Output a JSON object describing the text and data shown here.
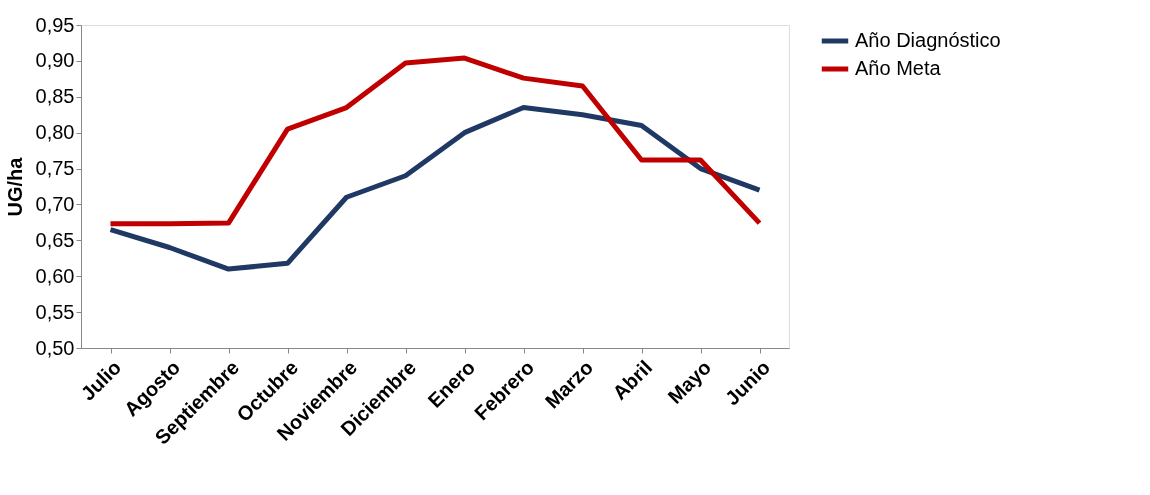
{
  "chart_data": {
    "type": "line",
    "ylabel": "UG/ha",
    "categories": [
      "Julio",
      "Agosto",
      "Septiembre",
      "Octubre",
      "Noviembre",
      "Diciembre",
      "Enero",
      "Febrero",
      "Marzo",
      "Abril",
      "Mayo",
      "Junio"
    ],
    "series": [
      {
        "name": "Año Diagnóstico",
        "color": "#1f3864",
        "values": [
          0.665,
          0.64,
          0.61,
          0.618,
          0.71,
          0.74,
          0.8,
          0.835,
          0.825,
          0.81,
          0.75,
          0.72
        ]
      },
      {
        "name": "Año Meta",
        "color": "#c00000",
        "values": [
          0.673,
          0.673,
          0.674,
          0.805,
          0.835,
          0.897,
          0.904,
          0.876,
          0.865,
          0.762,
          0.762,
          0.674
        ]
      }
    ],
    "ylim": [
      0.5,
      0.95
    ],
    "yticks": [
      {
        "value": 0.5,
        "label": "0,50"
      },
      {
        "value": 0.55,
        "label": "0,55"
      },
      {
        "value": 0.6,
        "label": "0,60"
      },
      {
        "value": 0.65,
        "label": "0,65"
      },
      {
        "value": 0.7,
        "label": "0,70"
      },
      {
        "value": 0.75,
        "label": "0,75"
      },
      {
        "value": 0.8,
        "label": "0,80"
      },
      {
        "value": 0.85,
        "label": "0,85"
      },
      {
        "value": 0.9,
        "label": "0,90"
      },
      {
        "value": 0.95,
        "label": "0,95"
      }
    ],
    "grid": false,
    "legend": "right",
    "marker": "none",
    "line_style": "solid"
  }
}
